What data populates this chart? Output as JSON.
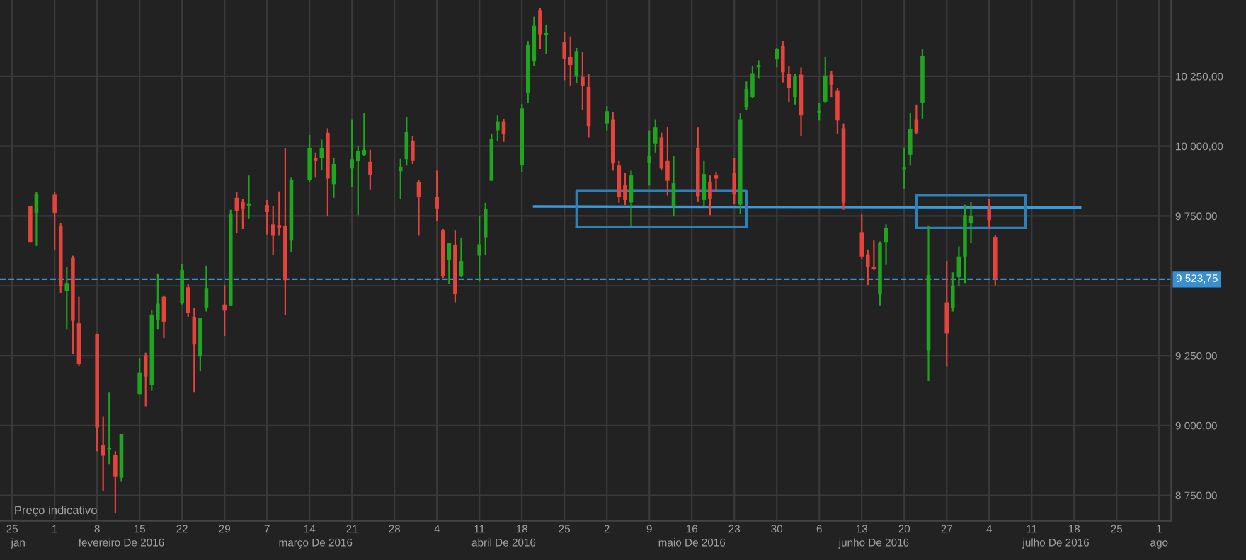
{
  "chart_data": {
    "type": "candlestick",
    "x": [
      "2016-01-28",
      "2016-01-29",
      "2016-02-01",
      "2016-02-02",
      "2016-02-03",
      "2016-02-04",
      "2016-02-05",
      "2016-02-08",
      "2016-02-09",
      "2016-02-10",
      "2016-02-11",
      "2016-02-12",
      "2016-02-15",
      "2016-02-16",
      "2016-02-17",
      "2016-02-18",
      "2016-02-19",
      "2016-02-22",
      "2016-02-23",
      "2016-02-24",
      "2016-02-25",
      "2016-02-26",
      "2016-02-29",
      "2016-03-01",
      "2016-03-02",
      "2016-03-03",
      "2016-03-04",
      "2016-03-07",
      "2016-03-08",
      "2016-03-09",
      "2016-03-10",
      "2016-03-11",
      "2016-03-14",
      "2016-03-15",
      "2016-03-16",
      "2016-03-17",
      "2016-03-18",
      "2016-03-21",
      "2016-03-22",
      "2016-03-23",
      "2016-03-24",
      "2016-03-29",
      "2016-03-30",
      "2016-03-31",
      "2016-04-01",
      "2016-04-04",
      "2016-04-05",
      "2016-04-06",
      "2016-04-07",
      "2016-04-08",
      "2016-04-11",
      "2016-04-12",
      "2016-04-13",
      "2016-04-14",
      "2016-04-15",
      "2016-04-18",
      "2016-04-19",
      "2016-04-20",
      "2016-04-21",
      "2016-04-22",
      "2016-04-25",
      "2016-04-26",
      "2016-04-27",
      "2016-04-28",
      "2016-04-29",
      "2016-05-02",
      "2016-05-03",
      "2016-05-04",
      "2016-05-05",
      "2016-05-06",
      "2016-05-09",
      "2016-05-10",
      "2016-05-11",
      "2016-05-12",
      "2016-05-13",
      "2016-05-17",
      "2016-05-18",
      "2016-05-19",
      "2016-05-20",
      "2016-05-23",
      "2016-05-24",
      "2016-05-25",
      "2016-05-26",
      "2016-05-27",
      "2016-05-30",
      "2016-05-31",
      "2016-06-01",
      "2016-06-02",
      "2016-06-03",
      "2016-06-06",
      "2016-06-07",
      "2016-06-08",
      "2016-06-09",
      "2016-06-10",
      "2016-06-13",
      "2016-06-14",
      "2016-06-15",
      "2016-06-16",
      "2016-06-17",
      "2016-06-20",
      "2016-06-21",
      "2016-06-22",
      "2016-06-23",
      "2016-06-24",
      "2016-06-27",
      "2016-06-28",
      "2016-06-29",
      "2016-06-30",
      "2016-07-01",
      "2016-07-04",
      "2016-07-05"
    ],
    "ohlc": [
      [
        9785,
        9785,
        9657,
        9657
      ],
      [
        9761,
        9835,
        9643,
        9830
      ],
      [
        9826,
        9835,
        9630,
        9761
      ],
      [
        9716,
        9725,
        9474,
        9498
      ],
      [
        9482,
        9569,
        9343,
        9510
      ],
      [
        9600,
        9608,
        9256,
        9375
      ],
      [
        9366,
        9461,
        9215,
        9220
      ],
      [
        9326,
        9329,
        8908,
        8993
      ],
      [
        8929,
        9031,
        8764,
        8892
      ],
      [
        8915,
        9118,
        8862,
        8919
      ],
      [
        8896,
        8908,
        8687,
        8818
      ],
      [
        8813,
        8969,
        8801,
        8969
      ],
      [
        9113,
        9239,
        9113,
        9190
      ],
      [
        9252,
        9261,
        9069,
        9175
      ],
      [
        9146,
        9413,
        9124,
        9397
      ],
      [
        9379,
        9544,
        9343,
        9436
      ],
      [
        9461,
        9466,
        9313,
        9372
      ],
      [
        9438,
        9577,
        9433,
        9556
      ],
      [
        9495,
        9507,
        9388,
        9402
      ],
      [
        9387,
        9421,
        9118,
        9290
      ],
      [
        9247,
        9384,
        9195,
        9384
      ],
      [
        9421,
        9572,
        9408,
        9490
      ],
      [
        9433,
        9503,
        9321,
        9411
      ],
      [
        9428,
        9772,
        9428,
        9757
      ],
      [
        9815,
        9835,
        9690,
        9769
      ],
      [
        9802,
        9810,
        9703,
        9777
      ],
      [
        9787,
        9895,
        9739,
        9795
      ],
      [
        9789,
        9807,
        9684,
        9764
      ],
      [
        9720,
        9785,
        9610,
        9679
      ],
      [
        9718,
        9838,
        9679,
        9707
      ],
      [
        9716,
        9994,
        9395,
        9520
      ],
      [
        9662,
        9887,
        9621,
        9879
      ],
      [
        9880,
        10040,
        9871,
        9994
      ],
      [
        9958,
        9977,
        9887,
        9949
      ],
      [
        9958,
        10023,
        9913,
        9994
      ],
      [
        10048,
        10064,
        9749,
        9884
      ],
      [
        9864,
        9958,
        9815,
        9936
      ],
      [
        9920,
        10094,
        9854,
        9953
      ],
      [
        9946,
        9999,
        9753,
        9982
      ],
      [
        9969,
        10118,
        9966,
        9987
      ],
      [
        9944,
        9987,
        9843,
        9897
      ],
      [
        9910,
        9954,
        9810,
        9926
      ],
      [
        9953,
        10104,
        9930,
        10051
      ],
      [
        10020,
        10036,
        9936,
        9949
      ],
      [
        9872,
        9879,
        9679,
        9818
      ],
      [
        9818,
        9912,
        9731,
        9777
      ],
      [
        9700,
        9703,
        9528,
        9534
      ],
      [
        9592,
        9654,
        9507,
        9654
      ],
      [
        9646,
        9700,
        9441,
        9470
      ],
      [
        9534,
        9671,
        9531,
        9589
      ],
      [
        9608,
        9749,
        9515,
        9649
      ],
      [
        9674,
        9797,
        9610,
        9774
      ],
      [
        9876,
        10044,
        9876,
        10026
      ],
      [
        10056,
        10110,
        10018,
        10089
      ],
      [
        10089,
        10097,
        10015,
        10043
      ],
      [
        9933,
        10151,
        9908,
        10135
      ],
      [
        10190,
        10376,
        10154,
        10364
      ],
      [
        10305,
        10463,
        10286,
        10430
      ],
      [
        10487,
        10494,
        10346,
        10400
      ],
      [
        10399,
        10433,
        10330,
        10405
      ],
      [
        10372,
        10409,
        10236,
        10313
      ],
      [
        10318,
        10392,
        10217,
        10290
      ],
      [
        10249,
        10351,
        10225,
        10340
      ],
      [
        10248,
        10338,
        10130,
        10217
      ],
      [
        10212,
        10258,
        10031,
        10072
      ],
      [
        10081,
        10143,
        10056,
        10125
      ],
      [
        10094,
        10122,
        9912,
        9938
      ],
      [
        9930,
        9949,
        9797,
        9818
      ],
      [
        9862,
        9903,
        9789,
        9807
      ],
      [
        9798,
        9912,
        9715,
        9895
      ],
      [
        9941,
        10056,
        9859,
        9966
      ],
      [
        10010,
        10094,
        9977,
        10067
      ],
      [
        10031,
        10048,
        9913,
        9920
      ],
      [
        9949,
        10069,
        9823,
        9876
      ],
      [
        9785,
        9966,
        9749,
        9867
      ],
      [
        9994,
        10067,
        9802,
        9821
      ],
      [
        9807,
        9949,
        9785,
        9900
      ],
      [
        9872,
        9895,
        9753,
        9810
      ],
      [
        9895,
        9908,
        9835,
        9884
      ],
      [
        9903,
        9958,
        9794,
        9826
      ],
      [
        9790,
        10118,
        9757,
        10094
      ],
      [
        10138,
        10231,
        10130,
        10204
      ],
      [
        10176,
        10286,
        10171,
        10261
      ],
      [
        10282,
        10307,
        10241,
        10290
      ],
      [
        10310,
        10351,
        10282,
        10346
      ],
      [
        10359,
        10376,
        10228,
        10264
      ],
      [
        10258,
        10286,
        10158,
        10208
      ],
      [
        10176,
        10258,
        10149,
        10248
      ],
      [
        10256,
        10281,
        10036,
        10110
      ],
      [
        10118,
        10154,
        10092,
        10126
      ],
      [
        10159,
        10318,
        10154,
        10253
      ],
      [
        10256,
        10269,
        10176,
        10220
      ],
      [
        10200,
        10208,
        10043,
        10092
      ],
      [
        10064,
        10081,
        9772,
        9798
      ],
      [
        9692,
        9757,
        9597,
        9605
      ],
      [
        9613,
        9630,
        9503,
        9567
      ],
      [
        9567,
        9662,
        9556,
        9561
      ],
      [
        9470,
        9659,
        9428,
        9654
      ],
      [
        9657,
        9720,
        9575,
        9708
      ],
      [
        9917,
        9995,
        9848,
        9925
      ],
      [
        9969,
        10118,
        9930,
        10061
      ],
      [
        10094,
        10149,
        10043,
        10048
      ],
      [
        10154,
        10346,
        10097,
        10323
      ],
      [
        9269,
        9716,
        9159,
        9539
      ],
      [
        9441,
        9589,
        9211,
        9330
      ],
      [
        9420,
        9548,
        9408,
        9498
      ],
      [
        9531,
        9641,
        9498,
        9605
      ],
      [
        9605,
        9790,
        9510,
        9753
      ],
      [
        9723,
        9799,
        9654,
        9749
      ],
      [
        9777,
        9810,
        9703,
        9736
      ],
      [
        9675,
        9682,
        9502,
        9524
      ]
    ],
    "colors": [
      "#e5433b",
      "#1fa51f",
      "#e5433b",
      "#e5433b",
      "#1fa51f",
      "#e5433b",
      "#e5433b",
      "#e5433b",
      "#e5433b",
      "#1fa51f",
      "#e5433b",
      "#1fa51f",
      "#1fa51f",
      "#e5433b",
      "#1fa51f",
      "#1fa51f",
      "#e5433b",
      "#1fa51f",
      "#e5433b",
      "#e5433b",
      "#1fa51f",
      "#1fa51f",
      "#e5433b",
      "#1fa51f",
      "#e5433b",
      "#e5433b",
      "#1fa51f",
      "#e5433b",
      "#e5433b",
      "#e5433b",
      "#e5433b",
      "#1fa51f",
      "#1fa51f",
      "#e5433b",
      "#1fa51f",
      "#e5433b",
      "#1fa51f",
      "#1fa51f",
      "#1fa51f",
      "#1fa51f",
      "#e5433b",
      "#1fa51f",
      "#1fa51f",
      "#e5433b",
      "#e5433b",
      "#e5433b",
      "#e5433b",
      "#1fa51f",
      "#e5433b",
      "#1fa51f",
      "#1fa51f",
      "#1fa51f",
      "#1fa51f",
      "#1fa51f",
      "#e5433b",
      "#1fa51f",
      "#1fa51f",
      "#1fa51f",
      "#e5433b",
      "#1fa51f",
      "#e5433b",
      "#e5433b",
      "#1fa51f",
      "#e5433b",
      "#e5433b",
      "#1fa51f",
      "#e5433b",
      "#e5433b",
      "#e5433b",
      "#1fa51f",
      "#1fa51f",
      "#1fa51f",
      "#e5433b",
      "#e5433b",
      "#1fa51f",
      "#e5433b",
      "#1fa51f",
      "#e5433b",
      "#e5433b",
      "#e5433b",
      "#1fa51f",
      "#1fa51f",
      "#1fa51f",
      "#1fa51f",
      "#1fa51f",
      "#e5433b",
      "#e5433b",
      "#1fa51f",
      "#e5433b",
      "#1fa51f",
      "#1fa51f",
      "#e5433b",
      "#e5433b",
      "#e5433b",
      "#e5433b",
      "#e5433b",
      "#e5433b",
      "#1fa51f",
      "#1fa51f",
      "#1fa51f",
      "#1fa51f",
      "#e5433b",
      "#1fa51f",
      "#1fa51f",
      "#e5433b",
      "#1fa51f",
      "#1fa51f",
      "#1fa51f",
      "#1fa51f",
      "#e5433b",
      "#e5433b"
    ],
    "series": [
      {
        "type": "line",
        "color": "#3a9ad9",
        "x": [
          "2016-04-20",
          "2016-07-19"
        ],
        "values": [
          9784,
          9780
        ]
      },
      {
        "type": "line",
        "color": "#2f7fb8",
        "x": [
          "2016-04-27",
          "2016-04-27",
          "2016-05-25",
          "2016-05-25"
        ],
        "values": [
          9711,
          9839,
          9839,
          9711
        ]
      },
      {
        "type": "line",
        "color": "#2f7fb8",
        "x": [
          "2016-04-27",
          "2016-05-25"
        ],
        "values": [
          9711,
          9711
        ]
      },
      {
        "type": "line",
        "color": "#2f7fb8",
        "x": [
          "2016-06-22",
          "2016-06-22",
          "2016-07-10",
          "2016-07-10"
        ],
        "values": [
          9707,
          9825,
          9825,
          9707
        ]
      },
      {
        "type": "line",
        "color": "#2f7fb8",
        "x": [
          "2016-06-22",
          "2016-07-10"
        ],
        "values": [
          9707,
          9707
        ]
      }
    ],
    "ref_lines": [
      {
        "axis": "y",
        "value": 9523.75,
        "label": "9 523,75",
        "color": "#3a8fd0",
        "line_style": "dashed"
      }
    ],
    "xlim": [
      "2016-01-23",
      "2016-08-03"
    ],
    "xticks": [
      {
        "value": "2016-01-25",
        "label": "25"
      },
      {
        "value": "2016-02-01",
        "label": "1"
      },
      {
        "value": "2016-02-08",
        "label": "8"
      },
      {
        "value": "2016-02-15",
        "label": "15"
      },
      {
        "value": "2016-02-22",
        "label": "22"
      },
      {
        "value": "2016-02-29",
        "label": "29"
      },
      {
        "value": "2016-03-07",
        "label": "7"
      },
      {
        "value": "2016-03-14",
        "label": "14"
      },
      {
        "value": "2016-03-21",
        "label": "21"
      },
      {
        "value": "2016-03-28",
        "label": "28"
      },
      {
        "value": "2016-04-04",
        "label": "4"
      },
      {
        "value": "2016-04-11",
        "label": "11"
      },
      {
        "value": "2016-04-18",
        "label": "18"
      },
      {
        "value": "2016-04-25",
        "label": "25"
      },
      {
        "value": "2016-05-02",
        "label": "2"
      },
      {
        "value": "2016-05-09",
        "label": "9"
      },
      {
        "value": "2016-05-16",
        "label": "16"
      },
      {
        "value": "2016-05-23",
        "label": "23"
      },
      {
        "value": "2016-05-30",
        "label": "30"
      },
      {
        "value": "2016-06-06",
        "label": "6"
      },
      {
        "value": "2016-06-13",
        "label": "13"
      },
      {
        "value": "2016-06-20",
        "label": "20"
      },
      {
        "value": "2016-06-27",
        "label": "27"
      },
      {
        "value": "2016-07-04",
        "label": "4"
      },
      {
        "value": "2016-07-11",
        "label": "11"
      },
      {
        "value": "2016-07-18",
        "label": "18"
      },
      {
        "value": "2016-07-25",
        "label": "25"
      },
      {
        "value": "2016-08-01",
        "label": "1"
      }
    ],
    "ylim": [
      8659,
      10523
    ],
    "yticks": [
      {
        "value": 8750,
        "label": "8 750,00"
      },
      {
        "value": 9000,
        "label": "9 000,00"
      },
      {
        "value": 9250,
        "label": "9 250,00"
      },
      {
        "value": 9500,
        "label": null
      },
      {
        "value": 9750,
        "label": "9 750,00"
      },
      {
        "value": 10000,
        "label": "10 000,00"
      },
      {
        "value": 10250,
        "label": "10 250,00"
      }
    ],
    "grid": true,
    "x2lim": [
      "2016-01-23",
      "2016-08-03"
    ],
    "x2ticks": [
      {
        "value": "2016-01-26",
        "label": "jan"
      },
      {
        "value": "2016-02-12",
        "label": "fevereiro De 2016"
      },
      {
        "value": "2016-03-15",
        "label": "março De 2016"
      },
      {
        "value": "2016-04-15",
        "label": "abril De 2016"
      },
      {
        "value": "2016-05-16",
        "label": "maio De 2016"
      },
      {
        "value": "2016-06-15",
        "label": "junho De 2016"
      },
      {
        "value": "2016-07-15",
        "label": "julho De 2016"
      },
      {
        "value": "2016-08-01",
        "label": "ago"
      }
    ],
    "annotations": [
      "Preço indicativo"
    ]
  }
}
